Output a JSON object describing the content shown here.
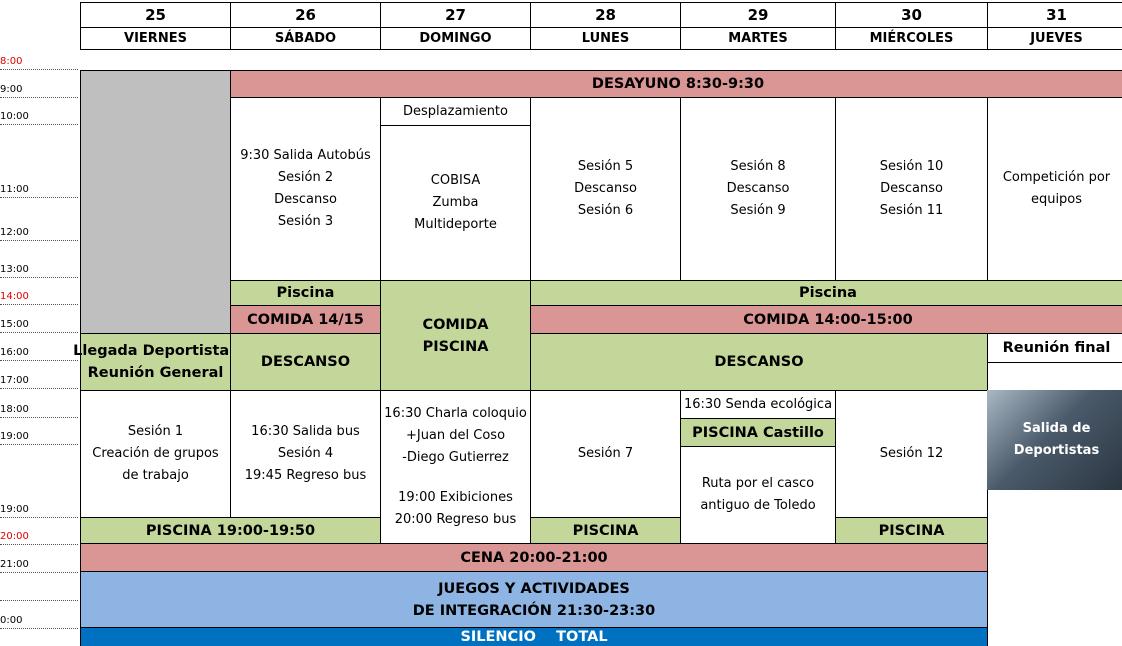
{
  "days": [
    {
      "number": "25",
      "name": "VIERNES"
    },
    {
      "number": "26",
      "name": "SÁBADO"
    },
    {
      "number": "27",
      "name": "DOMINGO"
    },
    {
      "number": "28",
      "name": "LUNES"
    },
    {
      "number": "29",
      "name": "MARTES"
    },
    {
      "number": "30",
      "name": "MIÉRCOLES"
    },
    {
      "number": "31",
      "name": "JUEVES"
    }
  ],
  "times": [
    {
      "label": "8:00",
      "highlight": true
    },
    {
      "label": "9:00"
    },
    {
      "label": "10:00"
    },
    {
      "label": "11:00"
    },
    {
      "label": "12:00"
    },
    {
      "label": "13:00"
    },
    {
      "label": "14:00",
      "highlight": true
    },
    {
      "label": "15:00"
    },
    {
      "label": "16:00"
    },
    {
      "label": "17:00"
    },
    {
      "label": "18:00"
    },
    {
      "label": "19:00"
    },
    {
      "label": "19:00"
    },
    {
      "label": "20:00",
      "highlight": true
    },
    {
      "label": "21:00"
    },
    {
      "label": "0:00"
    }
  ],
  "cells": [
    {
      "style": "gray",
      "lines": []
    },
    {
      "style": "meal",
      "bold": true,
      "lines": [
        "DESAYUNO 8:30-9:30"
      ]
    },
    {
      "style": "white",
      "lines": [
        "9:30 Salida Autobús",
        "Sesión 2",
        "Descanso",
        "Sesión 3"
      ]
    },
    {
      "style": "white",
      "lines": [
        "Desplazamiento"
      ]
    },
    {
      "style": "white",
      "lines": [
        "COBISA",
        "Zumba",
        "Multideporte"
      ]
    },
    {
      "style": "white",
      "lines": [
        "Sesión 5",
        "Descanso",
        "Sesión 6"
      ]
    },
    {
      "style": "white",
      "lines": [
        "Sesión 8",
        "Descanso",
        "Sesión 9"
      ]
    },
    {
      "style": "white",
      "lines": [
        "Sesión 10",
        "Descanso",
        "Sesión 11"
      ]
    },
    {
      "style": "white",
      "lines": [
        "Competición por",
        "equipos"
      ]
    },
    {
      "style": "pool",
      "bold": true,
      "lines": [
        "Piscina"
      ]
    },
    {
      "style": "pool",
      "bold": true,
      "lines": [
        "COMIDA",
        "PISCINA"
      ]
    },
    {
      "style": "pool",
      "bold": true,
      "lines": [
        "Piscina"
      ]
    },
    {
      "style": "meal",
      "bold": true,
      "lines": [
        "COMIDA 14/15"
      ]
    },
    {
      "style": "meal",
      "bold": true,
      "lines": [
        "COMIDA 14:00-15:00"
      ]
    },
    {
      "style": "pool",
      "bold": true,
      "lines": [
        "Llegada Deportistas",
        "Reunión General"
      ]
    },
    {
      "style": "pool",
      "bold": true,
      "lines": [
        "DESCANSO"
      ]
    },
    {
      "style": "pool",
      "bold": true,
      "lines": [
        "DESCANSO"
      ]
    },
    {
      "style": "white",
      "bold": true,
      "lines": [
        "Reunión final"
      ]
    },
    {
      "style": "white",
      "lines": [
        "Sesión 1",
        "Creación de grupos",
        "de trabajo"
      ]
    },
    {
      "style": "white",
      "lines": [
        "16:30 Salida bus",
        "Sesión 4",
        "19:45 Regreso bus"
      ]
    },
    {
      "style": "white",
      "lines": [
        "16:30 Charla coloquio",
        "+Juan del Coso",
        "-Diego Gutierrez",
        "19:00 Exibiciones",
        "20:00 Regreso bus"
      ]
    },
    {
      "style": "white",
      "lines": [
        "Sesión 7"
      ]
    },
    {
      "style": "white",
      "lines": [
        "16:30 Senda ecológica"
      ]
    },
    {
      "style": "pool",
      "bold": true,
      "lines": [
        "PISCINA Castillo"
      ]
    },
    {
      "style": "white",
      "lines": [
        "Ruta por el casco",
        "antiguo de Toledo"
      ]
    },
    {
      "style": "white",
      "lines": [
        "Sesión 12"
      ]
    },
    {
      "style": "photo",
      "bold": true,
      "lines": [
        "Salida de",
        "Deportistas"
      ]
    },
    {
      "style": "pool",
      "bold": true,
      "lines": [
        "PISCINA 19:00-19:50"
      ]
    },
    {
      "style": "pool",
      "bold": true,
      "lines": [
        "PISCINA"
      ]
    },
    {
      "style": "pool",
      "bold": true,
      "lines": [
        "PISCINA"
      ]
    },
    {
      "style": "meal",
      "bold": true,
      "lines": [
        "CENA 20:00-21:00"
      ]
    },
    {
      "style": "games",
      "bold": true,
      "lines": [
        "JUEGOS Y ACTIVIDADES",
        "DE INTEGRACIÓN 21:30-23:30"
      ]
    },
    {
      "style": "quiet",
      "bold": true,
      "lines": [
        "SILENCIO    TOTAL"
      ]
    }
  ]
}
